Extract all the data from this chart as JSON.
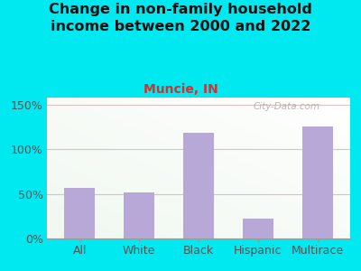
{
  "title": "Change in non-family household\nincome between 2000 and 2022",
  "subtitle": "Muncie, IN",
  "categories": [
    "All",
    "White",
    "Black",
    "Hispanic",
    "Multirace"
  ],
  "values": [
    57,
    52,
    119,
    22,
    126
  ],
  "bar_color": "#b8a8d8",
  "title_fontsize": 11.5,
  "subtitle_fontsize": 10,
  "subtitle_color": "#cc3333",
  "title_color": "#111111",
  "background_outer": "#00e8f0",
  "yticks": [
    0,
    50,
    100,
    150
  ],
  "ylim": [
    0,
    158
  ],
  "watermark": "City-Data.com",
  "watermark_color": "#aaaaaa",
  "grid_color": "#ddc0c0",
  "tick_label_color": "#555555",
  "bg_color_topleft": "#f0f8f0",
  "bg_color_bottomright": "#f8f8ff"
}
